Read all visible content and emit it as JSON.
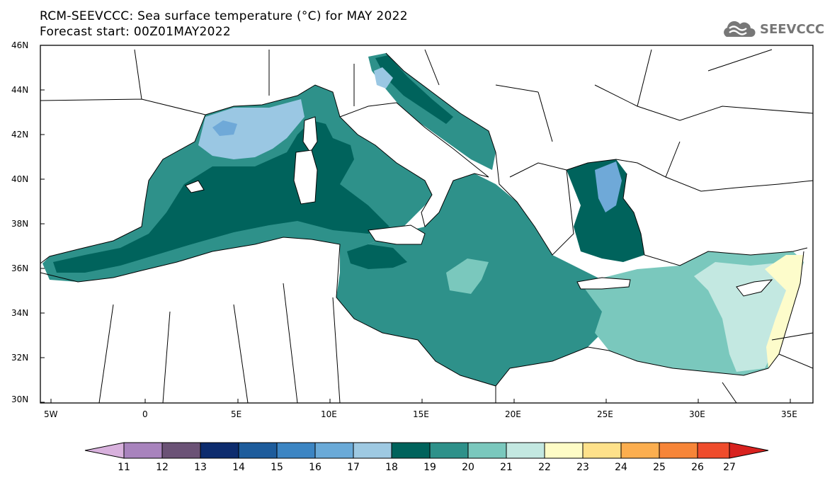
{
  "header": {
    "title_line1": "RCM-SEEVCCC: Sea surface temperature (°C) for MAY 2022",
    "title_line2": "Forecast start: 00Z01MAY2022"
  },
  "logo": {
    "text": "SEEVCCC",
    "icon": "cloud-icon"
  },
  "map": {
    "lat_labels": [
      "46N",
      "44N",
      "42N",
      "40N",
      "38N",
      "36N",
      "34N",
      "32N",
      "30N"
    ],
    "lon_labels": [
      "5W",
      "0",
      "5E",
      "10E",
      "15E",
      "20E",
      "25E",
      "30E",
      "35E"
    ],
    "region": "Mediterranean Sea",
    "colors": {
      "t18": "#9ac7e3",
      "t17": "#6fa9d8",
      "t19": "#00635c",
      "t20": "#2e918a",
      "t21": "#7ac8bd",
      "t22": "#c3e8e1",
      "t23": "#fdfccb"
    }
  },
  "colorbar": {
    "labels": [
      "11",
      "12",
      "13",
      "14",
      "15",
      "16",
      "17",
      "18",
      "19",
      "20",
      "21",
      "22",
      "23",
      "24",
      "25",
      "26",
      "27"
    ],
    "colors": [
      "#d8b1dd",
      "#a883bd",
      "#6b5276",
      "#0d2c6e",
      "#1d5c9c",
      "#3c85c3",
      "#6aaad8",
      "#9ec9e2",
      "#00635c",
      "#2e918a",
      "#7ac8bd",
      "#c3e8e1",
      "#fefcc6",
      "#fee18a",
      "#fcae4f",
      "#f78538",
      "#ef4c2c",
      "#d8221f"
    ]
  }
}
